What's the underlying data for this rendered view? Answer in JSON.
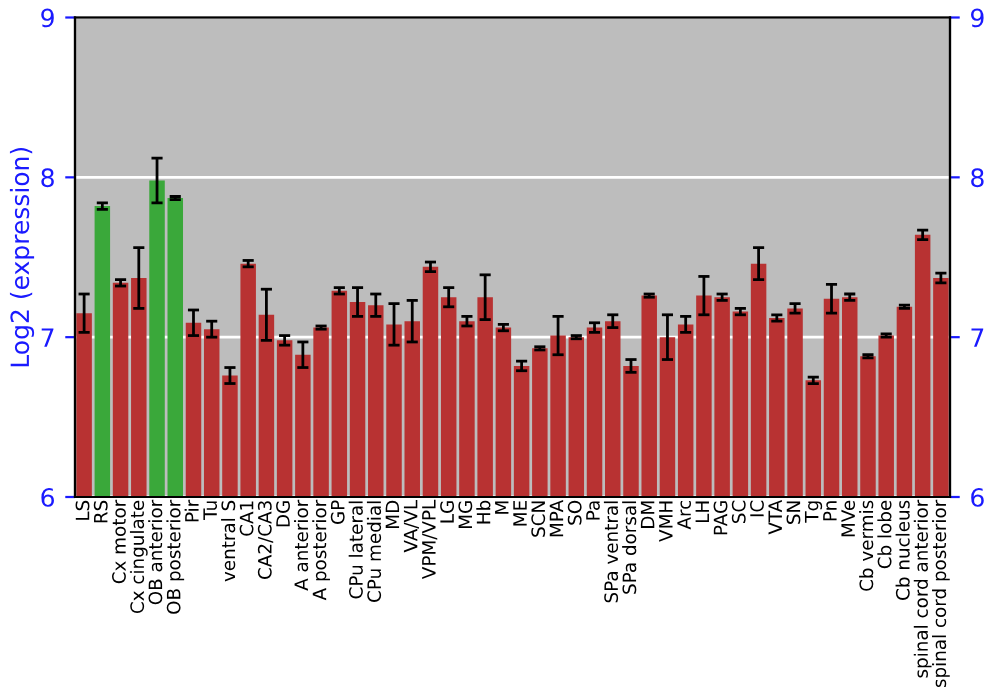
{
  "chart_data": {
    "type": "bar",
    "ylabel": "Log2 (expression)",
    "categories": [
      "LS",
      "RS",
      "Cx motor",
      "Cx cingulate",
      "OB anterior",
      "OB posterior",
      "Pir",
      "Tu",
      "ventral S",
      "CA1",
      "CA2/CA3",
      "DG",
      "A anterior",
      "A posterior",
      "GP",
      "CPu lateral",
      "CPu medial",
      "MD",
      "VA/VL",
      "VPM/VPL",
      "LG",
      "MG",
      "Hb",
      "M",
      "ME",
      "SCN",
      "MPA",
      "SO",
      "Pa",
      "SPa ventral",
      "SPa dorsal",
      "DM",
      "VMH",
      "Arc",
      "LH",
      "PAG",
      "SC",
      "IC",
      "VTA",
      "SN",
      "Tg",
      "Pn",
      "MVe",
      "Cb vermis",
      "Cb lobe",
      "Cb nucleus",
      "spinal cord anterior",
      "spinal cord posterior"
    ],
    "values": [
      7.15,
      7.82,
      7.34,
      7.37,
      7.98,
      7.87,
      7.09,
      7.05,
      6.76,
      7.46,
      7.14,
      6.98,
      6.89,
      7.06,
      7.29,
      7.22,
      7.2,
      7.08,
      7.1,
      7.44,
      7.25,
      7.1,
      7.25,
      7.06,
      6.82,
      6.93,
      7.01,
      7.0,
      7.06,
      7.1,
      6.82,
      7.26,
      7.0,
      7.08,
      7.26,
      7.25,
      7.16,
      7.46,
      7.12,
      7.18,
      6.73,
      7.24,
      7.25,
      6.88,
      7.01,
      7.19,
      7.64,
      7.37
    ],
    "errors": [
      0.12,
      0.02,
      0.02,
      0.19,
      0.14,
      0.01,
      0.08,
      0.05,
      0.05,
      0.02,
      0.16,
      0.03,
      0.08,
      0.01,
      0.02,
      0.09,
      0.07,
      0.13,
      0.13,
      0.03,
      0.06,
      0.03,
      0.14,
      0.02,
      0.03,
      0.01,
      0.12,
      0.01,
      0.03,
      0.04,
      0.04,
      0.01,
      0.14,
      0.05,
      0.12,
      0.02,
      0.02,
      0.1,
      0.02,
      0.03,
      0.02,
      0.09,
      0.02,
      0.01,
      0.01,
      0.01,
      0.03,
      0.03
    ],
    "colors": [
      "#b83232",
      "#3aa83a",
      "#b83232",
      "#b83232",
      "#3aa83a",
      "#3aa83a",
      "#b83232",
      "#b83232",
      "#b83232",
      "#b83232",
      "#b83232",
      "#b83232",
      "#b83232",
      "#b83232",
      "#b83232",
      "#b83232",
      "#b83232",
      "#b83232",
      "#b83232",
      "#b83232",
      "#b83232",
      "#b83232",
      "#b83232",
      "#b83232",
      "#b83232",
      "#b83232",
      "#b83232",
      "#b83232",
      "#b83232",
      "#b83232",
      "#b83232",
      "#b83232",
      "#b83232",
      "#b83232",
      "#b83232",
      "#b83232",
      "#b83232",
      "#b83232",
      "#b83232",
      "#b83232",
      "#b83232",
      "#b83232",
      "#b83232",
      "#b83232",
      "#b83232",
      "#b83232",
      "#b83232",
      "#b83232"
    ],
    "ylim": [
      6,
      9
    ],
    "yticks": [
      6,
      7,
      8,
      9
    ],
    "y2lim": [
      6,
      9
    ],
    "y2ticks": [
      6,
      7,
      8,
      9
    ],
    "grid": "y"
  }
}
